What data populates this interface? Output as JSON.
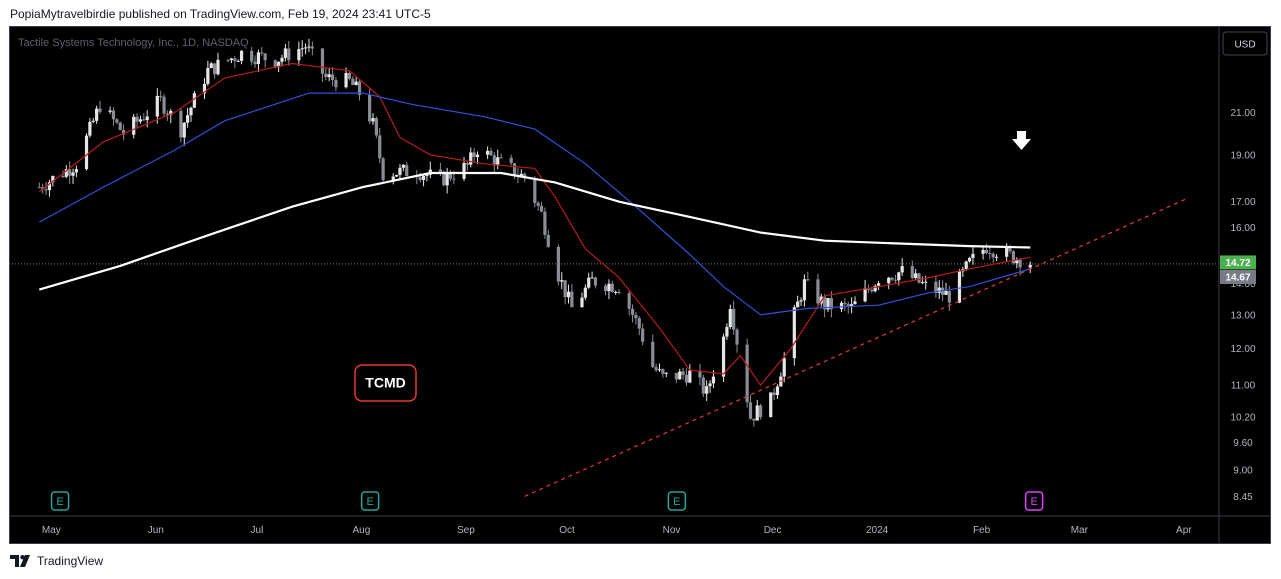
{
  "header": {
    "publish_line": "PopiaMytravelbirdie published on TradingView.com, Feb 19, 2024 23:41 UTC-5"
  },
  "footer": {
    "brand": "TradingView"
  },
  "colors": {
    "background": "#000000",
    "candle_up": "#e6e6e6",
    "candle_down": "#8a8d96",
    "ma_fast": "#b71c1c",
    "ma_mid": "#2f52d8",
    "ma_slow": "#ffffff",
    "trendline": "#e53935",
    "last_price_tag": "#4caf50",
    "prev_price_tag": "#787b86",
    "earnings_badge": "#26a69a",
    "earnings_badge_upcoming": "#e040fb",
    "label_border": "#e53935"
  },
  "chart_data": {
    "type": "candlestick",
    "symbol_line": "Tactile Systems Technology, Inc., 1D, NASDAQ",
    "currency_button": "USD",
    "label_box": "TCMD",
    "y_ticks": [
      21.0,
      19.0,
      17.0,
      16.0,
      14.0,
      13.0,
      12.0,
      11.0,
      10.2,
      9.6,
      9.0,
      8.45
    ],
    "y_tick_labels": [
      "21.00",
      "19.00",
      "17.00",
      "16.00",
      "14.00",
      "13.00",
      "12.00",
      "11.00",
      "10.20",
      "9.60",
      "9.00",
      "8.45"
    ],
    "y_scale": "log",
    "x_tick_labels": [
      "May",
      "Jun",
      "Jul",
      "Aug",
      "Sep",
      "Oct",
      "Nov",
      "Dec",
      "2024",
      "Feb",
      "Mar",
      "Apr"
    ],
    "x_tick_dates": [
      "2023-05-01",
      "2023-06-01",
      "2023-07-01",
      "2023-08-01",
      "2023-09-01",
      "2023-10-01",
      "2023-11-01",
      "2023-12-01",
      "2024-01-01",
      "2024-02-01",
      "2024-03-01",
      "2024-04-01"
    ],
    "last_price": {
      "value": 14.72,
      "label": "14.72"
    },
    "prev_close": {
      "value": 14.67,
      "label": "14.67"
    },
    "earnings_markers": [
      {
        "date": "2023-05-07",
        "label": "E",
        "upcoming": false
      },
      {
        "date": "2023-08-07",
        "label": "E",
        "upcoming": false
      },
      {
        "date": "2023-11-06",
        "label": "E",
        "upcoming": false
      },
      {
        "date": "2024-02-20",
        "label": "E",
        "upcoming": true
      }
    ],
    "candle_anchors": [
      [
        "2023-05-01",
        17.6
      ],
      [
        "2023-05-12",
        18.6
      ],
      [
        "2023-05-19",
        21.4
      ],
      [
        "2023-05-26",
        20.0
      ],
      [
        "2023-06-06",
        21.6
      ],
      [
        "2023-06-12",
        20.2
      ],
      [
        "2023-06-20",
        23.2
      ],
      [
        "2023-06-30",
        24.2
      ],
      [
        "2023-07-10",
        23.8
      ],
      [
        "2023-07-19",
        24.6
      ],
      [
        "2023-07-25",
        22.8
      ],
      [
        "2023-08-01",
        22.6
      ],
      [
        "2023-08-04",
        22.0
      ],
      [
        "2023-08-08",
        20.4
      ],
      [
        "2023-08-11",
        18.2
      ],
      [
        "2023-08-21",
        18.3
      ],
      [
        "2023-08-28",
        17.9
      ],
      [
        "2023-09-05",
        18.5
      ],
      [
        "2023-09-08",
        19.3
      ],
      [
        "2023-09-15",
        18.6
      ],
      [
        "2023-09-22",
        18.0
      ],
      [
        "2023-09-27",
        16.5
      ],
      [
        "2023-10-02",
        14.3
      ],
      [
        "2023-10-06",
        13.2
      ],
      [
        "2023-10-12",
        14.1
      ],
      [
        "2023-10-20",
        13.9
      ],
      [
        "2023-10-26",
        12.6
      ],
      [
        "2023-10-30",
        11.5
      ],
      [
        "2023-11-02",
        11.2
      ],
      [
        "2023-11-10",
        11.3
      ],
      [
        "2023-11-15",
        10.8
      ],
      [
        "2023-11-20",
        12.3
      ],
      [
        "2023-11-22",
        13.4
      ],
      [
        "2023-11-28",
        10.2
      ],
      [
        "2023-12-04",
        10.6
      ],
      [
        "2023-12-08",
        11.7
      ],
      [
        "2023-12-11",
        13.0
      ],
      [
        "2023-12-14",
        14.0
      ],
      [
        "2023-12-20",
        13.3
      ],
      [
        "2023-12-28",
        13.2
      ],
      [
        "2024-01-05",
        14.2
      ],
      [
        "2024-01-12",
        14.4
      ],
      [
        "2024-01-19",
        13.9
      ],
      [
        "2024-01-26",
        13.6
      ],
      [
        "2024-02-01",
        14.7
      ],
      [
        "2024-02-06",
        15.3
      ],
      [
        "2024-02-12",
        15.0
      ],
      [
        "2024-02-19",
        14.72
      ]
    ],
    "series": [
      {
        "kind": "ma_fast",
        "points": [
          [
            "2023-05-01",
            17.4
          ],
          [
            "2023-05-20",
            19.6
          ],
          [
            "2023-06-10",
            21.0
          ],
          [
            "2023-06-25",
            22.8
          ],
          [
            "2023-07-15",
            23.6
          ],
          [
            "2023-08-01",
            23.2
          ],
          [
            "2023-08-10",
            21.8
          ],
          [
            "2023-08-16",
            19.8
          ],
          [
            "2023-08-25",
            19.0
          ],
          [
            "2023-09-10",
            18.6
          ],
          [
            "2023-09-25",
            18.4
          ],
          [
            "2023-10-01",
            17.2
          ],
          [
            "2023-10-10",
            15.2
          ],
          [
            "2023-10-20",
            14.2
          ],
          [
            "2023-11-01",
            12.6
          ],
          [
            "2023-11-10",
            11.4
          ],
          [
            "2023-11-20",
            11.3
          ],
          [
            "2023-11-25",
            11.8
          ],
          [
            "2023-12-01",
            11.0
          ],
          [
            "2023-12-10",
            12.0
          ],
          [
            "2023-12-20",
            13.6
          ],
          [
            "2024-01-05",
            13.9
          ],
          [
            "2024-01-20",
            14.2
          ],
          [
            "2024-02-01",
            14.5
          ],
          [
            "2024-02-19",
            14.9
          ]
        ]
      },
      {
        "kind": "ma_mid",
        "points": [
          [
            "2023-05-01",
            16.2
          ],
          [
            "2023-05-20",
            17.6
          ],
          [
            "2023-06-10",
            19.2
          ],
          [
            "2023-06-25",
            20.6
          ],
          [
            "2023-07-20",
            22.0
          ],
          [
            "2023-08-05",
            22.0
          ],
          [
            "2023-08-20",
            21.4
          ],
          [
            "2023-09-10",
            20.8
          ],
          [
            "2023-09-25",
            20.2
          ],
          [
            "2023-10-10",
            18.6
          ],
          [
            "2023-10-25",
            16.8
          ],
          [
            "2023-11-10",
            15.0
          ],
          [
            "2023-11-20",
            13.9
          ],
          [
            "2023-12-01",
            13.0
          ],
          [
            "2023-12-15",
            13.2
          ],
          [
            "2024-01-05",
            13.3
          ],
          [
            "2024-01-20",
            13.7
          ],
          [
            "2024-02-01",
            13.9
          ],
          [
            "2024-02-19",
            14.5
          ]
        ]
      },
      {
        "kind": "ma_slow",
        "points": [
          [
            "2023-05-01",
            13.8
          ],
          [
            "2023-05-25",
            14.6
          ],
          [
            "2023-06-20",
            15.7
          ],
          [
            "2023-07-15",
            16.8
          ],
          [
            "2023-08-05",
            17.6
          ],
          [
            "2023-08-25",
            18.2
          ],
          [
            "2023-09-15",
            18.2
          ],
          [
            "2023-10-01",
            17.8
          ],
          [
            "2023-10-20",
            17.0
          ],
          [
            "2023-11-10",
            16.4
          ],
          [
            "2023-12-01",
            15.8
          ],
          [
            "2023-12-20",
            15.5
          ],
          [
            "2024-01-10",
            15.4
          ],
          [
            "2024-02-01",
            15.3
          ],
          [
            "2024-02-19",
            15.25
          ]
        ]
      },
      {
        "kind": "trendline",
        "points": [
          [
            "2023-09-22",
            8.45
          ],
          [
            "2024-04-05",
            17.1
          ]
        ]
      }
    ]
  }
}
